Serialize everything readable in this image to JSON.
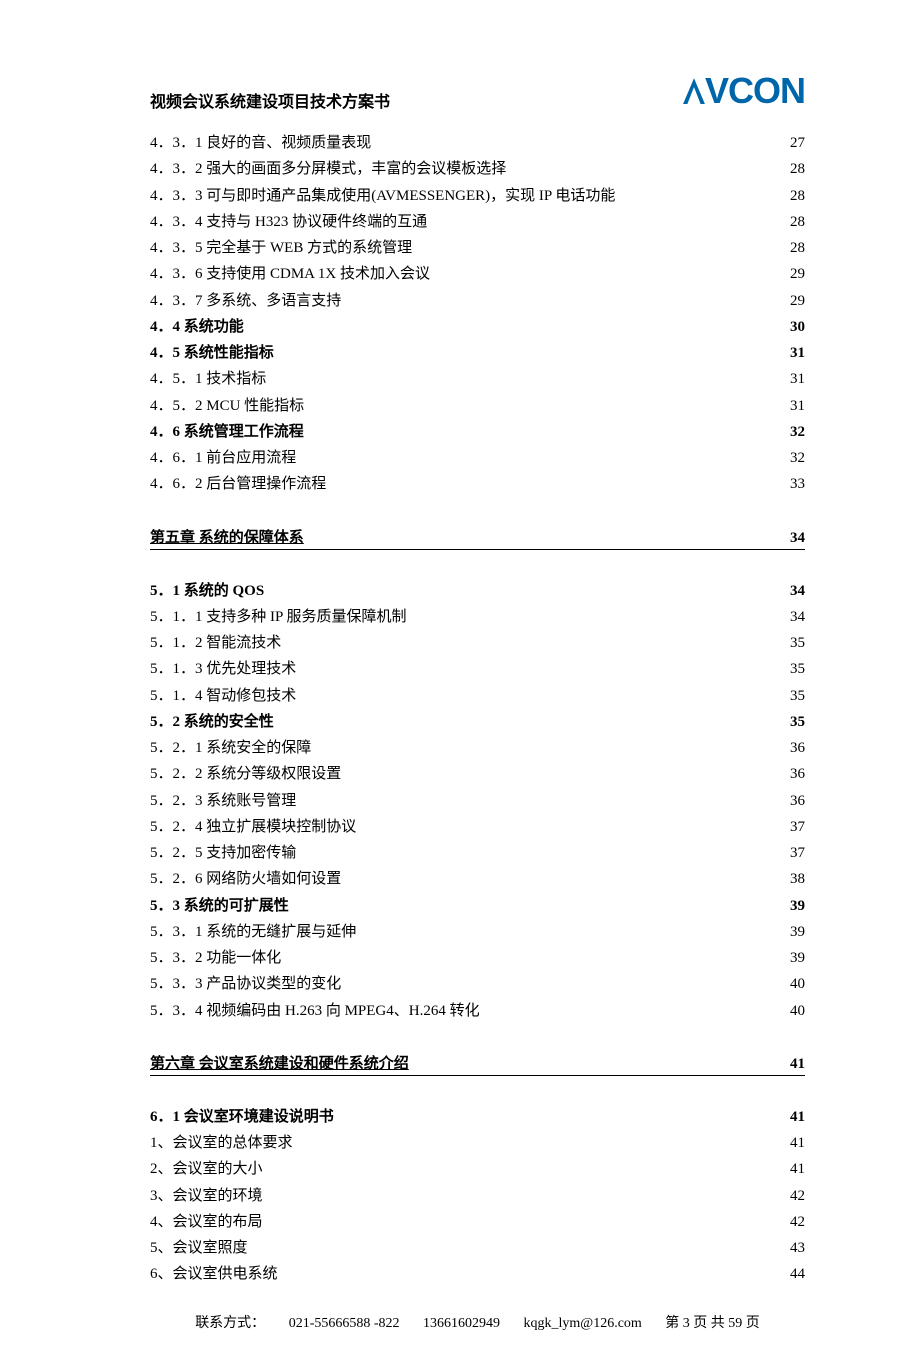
{
  "header": {
    "title": "视频会议系统建设项目技术方案书",
    "logo_text": "VCON"
  },
  "toc": [
    {
      "label": "4．3．1 良好的音、视频质量表现",
      "page": "27",
      "bold": false
    },
    {
      "label": "4．3．2 强大的画面多分屏模式，丰富的会议模板选择",
      "page": "28",
      "bold": false
    },
    {
      "label": "4．3．3 可与即时通产品集成使用(AVMESSENGER)，实现 IP 电话功能",
      "page": "28",
      "bold": false
    },
    {
      "label": "4．3．4 支持与 H323 协议硬件终端的互通",
      "page": "28",
      "bold": false
    },
    {
      "label": "4．3．5 完全基于 WEB 方式的系统管理",
      "page": "28",
      "bold": false
    },
    {
      "label": "4．3．6 支持使用 CDMA 1X 技术加入会议",
      "page": "29",
      "bold": false
    },
    {
      "label": "4．3．7 多系统、多语言支持",
      "page": "29",
      "bold": false
    },
    {
      "label": "4．4 系统功能",
      "page": "30",
      "bold": true
    },
    {
      "label": "4．5 系统性能指标",
      "page": "31",
      "bold": true
    },
    {
      "label": "4．5．1 技术指标",
      "page": "31",
      "bold": false
    },
    {
      "label": "4．5．2 MCU 性能指标",
      "page": "31",
      "bold": false
    },
    {
      "label": "4．6 系统管理工作流程",
      "page": "32",
      "bold": true
    },
    {
      "label": "4．6．1 前台应用流程",
      "page": "32",
      "bold": false
    },
    {
      "label": "4．6．2 后台管理操作流程",
      "page": "33",
      "bold": false
    }
  ],
  "chapter5": {
    "label": "第五章  系统的保障体系",
    "page": "34"
  },
  "toc5": [
    {
      "label": "5．1 系统的 QOS",
      "page": "34",
      "bold": true
    },
    {
      "label": "5．1．1 支持多种 IP 服务质量保障机制",
      "page": "34",
      "bold": false
    },
    {
      "label": "5．1．2 智能流技术",
      "page": "35",
      "bold": false
    },
    {
      "label": "5．1．3 优先处理技术",
      "page": "35",
      "bold": false
    },
    {
      "label": "5．1．4 智动修包技术",
      "page": "35",
      "bold": false
    },
    {
      "label": "5．2 系统的安全性",
      "page": "35",
      "bold": true
    },
    {
      "label": "5．2．1 系统安全的保障",
      "page": "36",
      "bold": false
    },
    {
      "label": "5．2．2 系统分等级权限设置",
      "page": "36",
      "bold": false
    },
    {
      "label": "5．2．3 系统账号管理",
      "page": "36",
      "bold": false
    },
    {
      "label": "5．2．4 独立扩展模块控制协议",
      "page": "37",
      "bold": false
    },
    {
      "label": "5．2．5 支持加密传输",
      "page": "37",
      "bold": false
    },
    {
      "label": "5．2．6 网络防火墙如何设置",
      "page": "38",
      "bold": false
    },
    {
      "label": "5．3 系统的可扩展性",
      "page": "39",
      "bold": true
    },
    {
      "label": "5．3．1 系统的无缝扩展与延伸",
      "page": "39",
      "bold": false
    },
    {
      "label": "5．3．2 功能一体化",
      "page": "39",
      "bold": false
    },
    {
      "label": "5．3．3 产品协议类型的变化",
      "page": "40",
      "bold": false
    },
    {
      "label": "5．3．4 视频编码由 H.263 向 MPEG4、H.264 转化",
      "page": "40",
      "bold": false
    }
  ],
  "chapter6": {
    "label": "第六章  会议室系统建设和硬件系统介绍",
    "page": "41"
  },
  "toc6": [
    {
      "label": "6．1 会议室环境建设说明书",
      "page": "41",
      "bold": true
    },
    {
      "label": "1、会议室的总体要求",
      "page": "41",
      "bold": false
    },
    {
      "label": "2、会议室的大小",
      "page": "41",
      "bold": false
    },
    {
      "label": "3、会议室的环境",
      "page": "42",
      "bold": false
    },
    {
      "label": "4、会议室的布局",
      "page": "42",
      "bold": false
    },
    {
      "label": "5、会议室照度",
      "page": "43",
      "bold": false
    },
    {
      "label": "6、会议室供电系统",
      "page": "44",
      "bold": false
    }
  ],
  "footer": {
    "contact_label": "联系方式：",
    "phone1": "021-55666588 -822",
    "phone2": "13661602949",
    "email": "kqgk_lym@126.com",
    "page_info": "第 3 页 共 59 页"
  }
}
